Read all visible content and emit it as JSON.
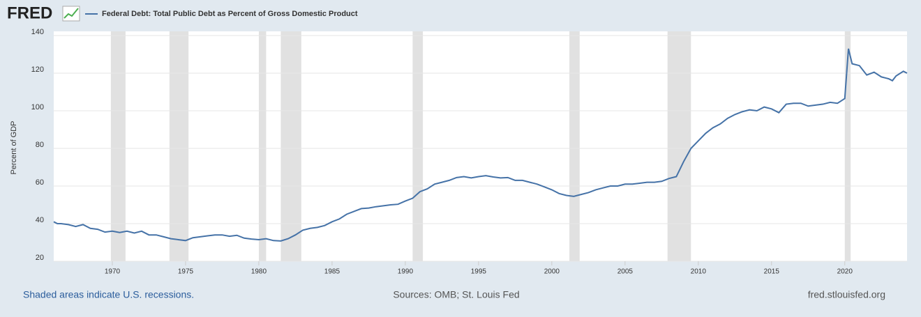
{
  "logo": "FRED",
  "chart_data": {
    "type": "line",
    "y_label": "Percent of GDP",
    "series": [
      {
        "name": "Federal Debt: Total Public Debt as Percent of Gross Domestic Product",
        "color": "#4572a7",
        "values": [
          41,
          40,
          40,
          39.5,
          38.5,
          39.5,
          37.5,
          37,
          35.5,
          36,
          35.3,
          36,
          35,
          36,
          34,
          34,
          33,
          32,
          31.5,
          31,
          32.5,
          33,
          33.5,
          34,
          34,
          33.3,
          33.8,
          32.3,
          31.8,
          31.5,
          32,
          31,
          30.8,
          32,
          34,
          36.5,
          37.5,
          38,
          39,
          41,
          42.5,
          45,
          46.5,
          48,
          48.3,
          49,
          49.5,
          50,
          50.3,
          52,
          53.5,
          57,
          58.5,
          61,
          62,
          63,
          64.5,
          65,
          64.3,
          65,
          65.5,
          64.8,
          64.3,
          64.5,
          63,
          63,
          62,
          61,
          59.5,
          58,
          56,
          55,
          54.5,
          55.5,
          56.5,
          58,
          59,
          60,
          60,
          61,
          61,
          61.5,
          62,
          62,
          62.5,
          64,
          65,
          73,
          80,
          84,
          88,
          91,
          93,
          96,
          98,
          99.5,
          100.5,
          100,
          102,
          101,
          99,
          103.5,
          104,
          104,
          102.5,
          103,
          103.5,
          104.5,
          104,
          106.5,
          133,
          125,
          124,
          119,
          120.5,
          118,
          117,
          116,
          118.5,
          121,
          120
        ]
      }
    ],
    "x": [
      1966,
      1966.25,
      1966.5,
      1967,
      1967.5,
      1968,
      1968.5,
      1969,
      1969.5,
      1970,
      1970.5,
      1971,
      1971.5,
      1972,
      1972.5,
      1973,
      1973.5,
      1974,
      1974.5,
      1975,
      1975.5,
      1976,
      1976.5,
      1977,
      1977.5,
      1978,
      1978.5,
      1979,
      1979.5,
      1980,
      1980.5,
      1981,
      1981.5,
      1982,
      1982.5,
      1983,
      1983.5,
      1984,
      1984.5,
      1985,
      1985.5,
      1986,
      1986.5,
      1987,
      1987.5,
      1988,
      1988.5,
      1989,
      1989.5,
      1990,
      1990.5,
      1991,
      1991.5,
      1992,
      1992.5,
      1993,
      1993.5,
      1994,
      1994.5,
      1995,
      1995.5,
      1996,
      1996.5,
      1997,
      1997.5,
      1998,
      1998.5,
      1999,
      1999.5,
      2000,
      2000.5,
      2001,
      2001.5,
      2002,
      2002.5,
      2003,
      2003.5,
      2004,
      2004.5,
      2005,
      2005.5,
      2006,
      2006.5,
      2007,
      2007.5,
      2008,
      2008.5,
      2009,
      2009.5,
      2010,
      2010.5,
      2011,
      2011.5,
      2012,
      2012.5,
      2013,
      2013.5,
      2014,
      2014.5,
      2015,
      2015.5,
      2016,
      2016.5,
      2017,
      2017.5,
      2018,
      2018.5,
      2019,
      2019.5,
      2020,
      2020.25,
      2020.5,
      2021,
      2021.5,
      2022,
      2022.5,
      2023,
      2023.25,
      2023.5,
      2024,
      2024.25
    ],
    "recessions": [
      [
        1969.9,
        1970.9
      ],
      [
        1973.9,
        1975.2
      ],
      [
        1980.0,
        1980.5
      ],
      [
        1981.5,
        1982.9
      ],
      [
        1990.5,
        1991.2
      ],
      [
        2001.2,
        2001.9
      ],
      [
        2007.9,
        2009.5
      ],
      [
        2020.0,
        2020.4
      ]
    ],
    "recession_color": "#e1e1e1",
    "xlim": [
      1966,
      2024.25
    ],
    "xticks": [
      1970,
      1975,
      1980,
      1985,
      1990,
      1995,
      2000,
      2005,
      2010,
      2015,
      2020
    ],
    "ylim": [
      20,
      140
    ],
    "yticks": [
      20,
      40,
      60,
      80,
      100,
      120,
      140
    ],
    "grid": true,
    "notes": {
      "recessions": "Shaded areas indicate U.S. recessions.",
      "sources": "Sources: OMB; St. Louis Fed",
      "site": "fred.stlouisfed.org"
    }
  }
}
